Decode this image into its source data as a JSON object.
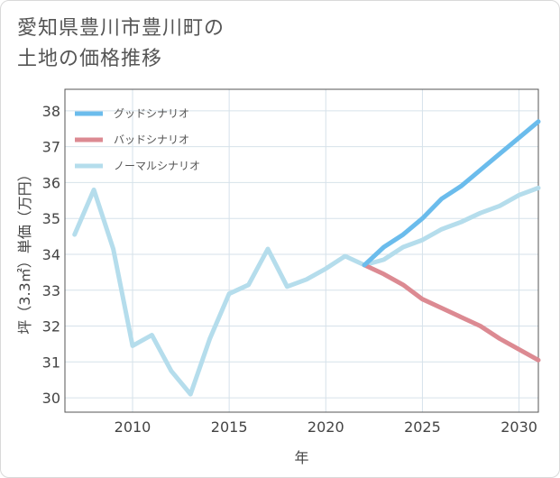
{
  "title": {
    "line1": "愛知県豊川市豊川町の",
    "line2": "土地の価格推移"
  },
  "chart_data": {
    "type": "line",
    "xlabel": "年",
    "ylabel": "坪（3.3㎡）単価（万円）",
    "xlim": [
      2006.5,
      2031
    ],
    "ylim": [
      29.6,
      38.6
    ],
    "xticks": [
      2010,
      2015,
      2020,
      2025,
      2030
    ],
    "yticks": [
      30,
      31,
      32,
      33,
      34,
      35,
      36,
      37,
      38
    ],
    "grid": true,
    "legend_position": "top-left",
    "series": [
      {
        "name": "グッドシナリオ",
        "color": "#6bbcec",
        "x": [
          2022,
          2023,
          2024,
          2025,
          2026,
          2027,
          2028,
          2029,
          2030,
          2031
        ],
        "y": [
          33.7,
          34.2,
          34.55,
          35.0,
          35.55,
          35.9,
          36.35,
          36.8,
          37.25,
          37.7
        ]
      },
      {
        "name": "バッドシナリオ",
        "color": "#dc8a92",
        "x": [
          2022,
          2023,
          2024,
          2025,
          2026,
          2027,
          2028,
          2029,
          2030,
          2031
        ],
        "y": [
          33.7,
          33.45,
          33.15,
          32.75,
          32.5,
          32.25,
          32.0,
          31.65,
          31.35,
          31.05
        ]
      },
      {
        "name": "ノーマルシナリオ",
        "color": "#b5ddec",
        "x": [
          2007,
          2008,
          2009,
          2010,
          2011,
          2012,
          2013,
          2014,
          2015,
          2016,
          2017,
          2018,
          2019,
          2020,
          2021,
          2022,
          2023,
          2024,
          2025,
          2026,
          2027,
          2028,
          2029,
          2030,
          2031
        ],
        "y": [
          34.55,
          35.8,
          34.15,
          31.45,
          31.75,
          30.75,
          30.1,
          31.65,
          32.9,
          33.15,
          34.15,
          33.1,
          33.3,
          33.6,
          33.95,
          33.7,
          33.85,
          34.2,
          34.4,
          34.7,
          34.9,
          35.15,
          35.35,
          35.65,
          35.85
        ]
      }
    ]
  }
}
